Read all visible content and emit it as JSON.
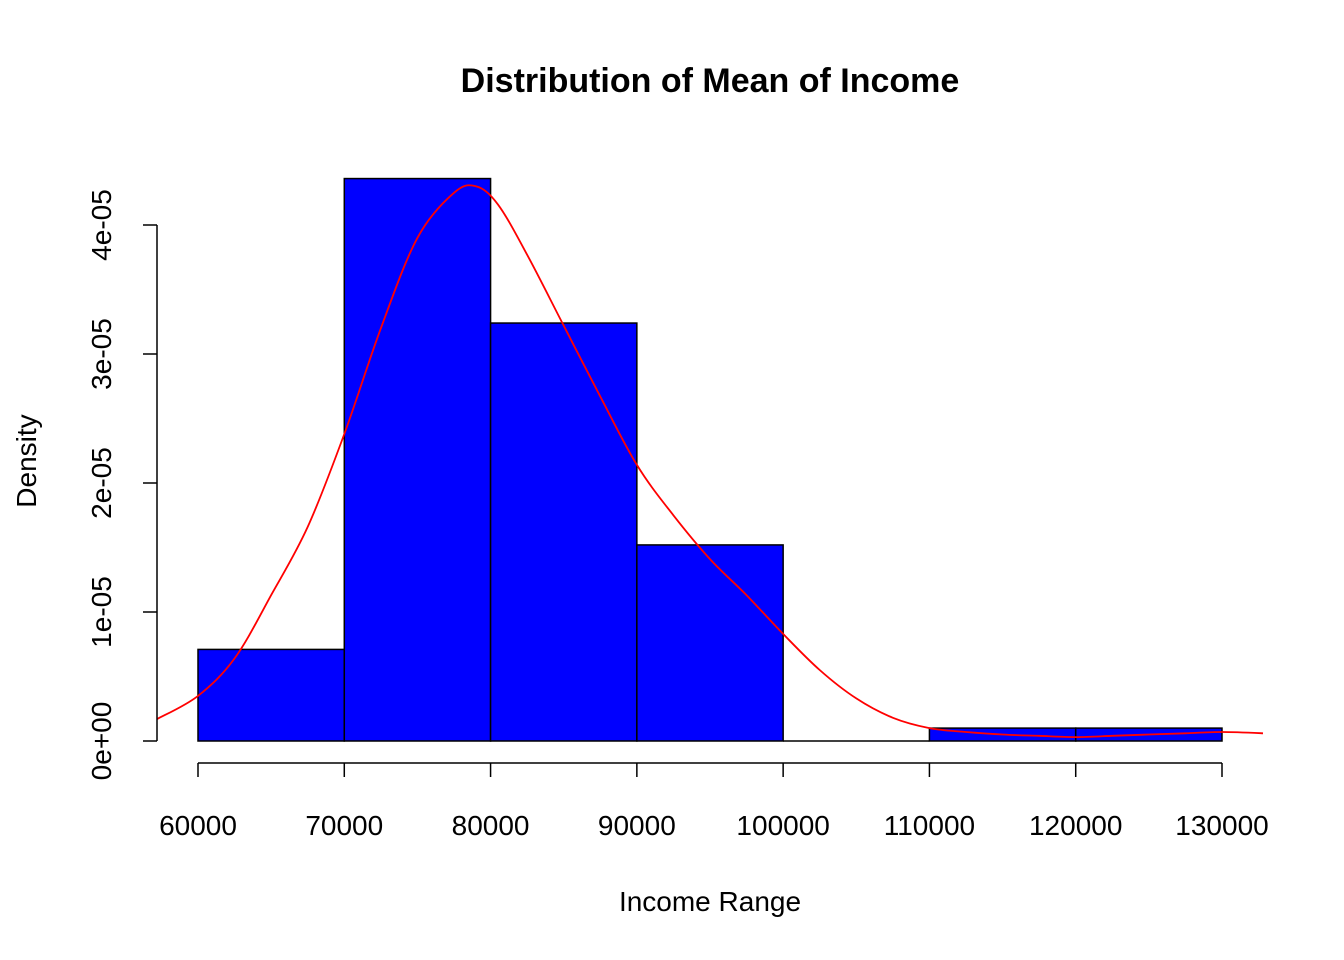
{
  "chart_data": {
    "type": "bar",
    "title": "Distribution of Mean of Income",
    "xlabel": "Income Range",
    "ylabel": "Density",
    "xlim": [
      60000,
      130000
    ],
    "ylim": [
      0,
      4e-05
    ],
    "x_ticks": [
      60000,
      70000,
      80000,
      90000,
      100000,
      110000,
      120000,
      130000
    ],
    "x_tick_labels": [
      "60000",
      "70000",
      "80000",
      "90000",
      "100000",
      "110000",
      "120000",
      "130000"
    ],
    "y_ticks": [
      0,
      1e-05,
      2e-05,
      3e-05,
      4e-05
    ],
    "y_tick_labels": [
      "0e+00",
      "1e-05",
      "2e-05",
      "3e-05",
      "4e-05"
    ],
    "bins": [
      {
        "from": 60000,
        "to": 70000,
        "density": 7.1e-06
      },
      {
        "from": 70000,
        "to": 80000,
        "density": 4.36e-05
      },
      {
        "from": 80000,
        "to": 90000,
        "density": 3.24e-05
      },
      {
        "from": 90000,
        "to": 100000,
        "density": 1.52e-05
      },
      {
        "from": 100000,
        "to": 110000,
        "density": 0.0
      },
      {
        "from": 110000,
        "to": 120000,
        "density": 1e-06
      },
      {
        "from": 120000,
        "to": 130000,
        "density": 1e-06
      }
    ],
    "bar_color": "#0000ff",
    "density_curve": {
      "color": "#ff0000",
      "x": [
        57200,
        60000,
        62500,
        65000,
        67500,
        70000,
        72500,
        75000,
        77500,
        79000,
        80500,
        82500,
        85000,
        87500,
        90000,
        92500,
        95000,
        97500,
        100000,
        102500,
        105000,
        107500,
        110000,
        112500,
        115000,
        117500,
        120000,
        122500,
        125000,
        127500,
        130000,
        132800
      ],
      "y": [
        1.7e-06,
        3.5e-06,
        6.4e-06,
        1.13e-05,
        1.66e-05,
        2.38e-05,
        3.2e-05,
        3.9e-05,
        4.25e-05,
        4.3e-05,
        4.16e-05,
        3.77e-05,
        3.22e-05,
        2.67e-05,
        2.14e-05,
        1.75e-05,
        1.41e-05,
        1.13e-05,
        8.3e-06,
        5.5e-06,
        3.3e-06,
        1.8e-06,
        1e-06,
        7e-07,
        5e-07,
        4e-07,
        3e-07,
        4e-07,
        5e-07,
        6e-07,
        7e-07,
        6e-07
      ]
    }
  }
}
